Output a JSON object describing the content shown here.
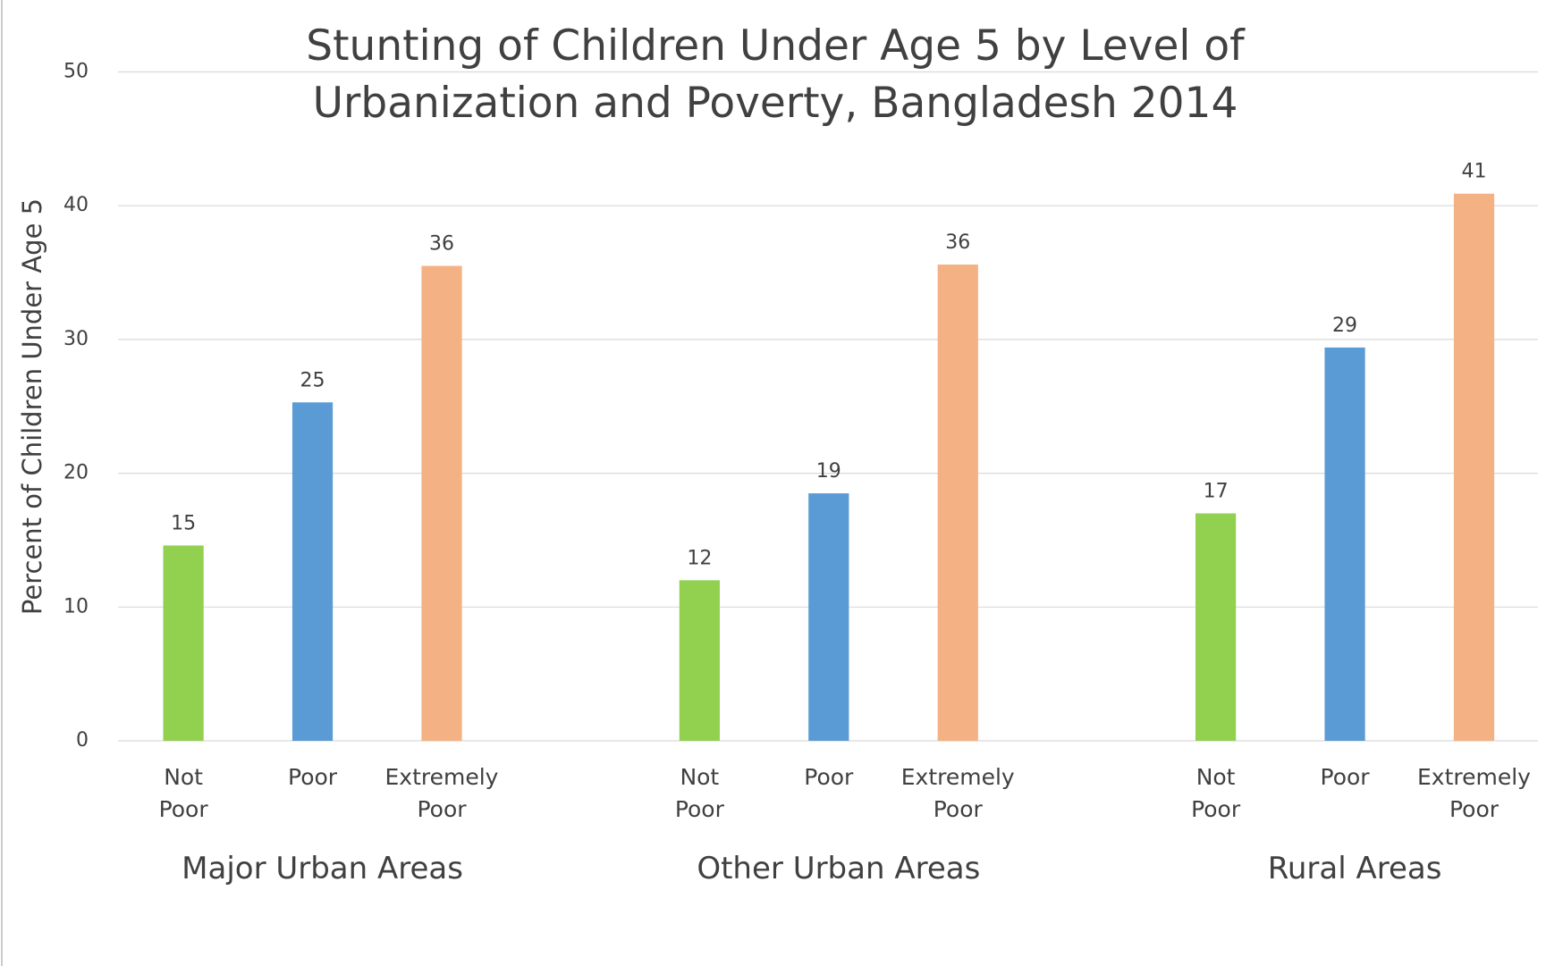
{
  "chart_data": {
    "type": "grouped_bar",
    "title": "Stunting of Children Under Age 5 by Level of Urbanization and Poverty, Bangladesh 2014",
    "y_label": "Percent of Children Under Age 5",
    "groups": [
      "Major Urban Areas",
      "Other Urban Areas",
      "Rural Areas"
    ],
    "series": [
      {
        "name": "Not Poor",
        "color": "#92d050",
        "values": [
          14.6,
          12.0,
          17.0
        ],
        "value_labels": [
          "15",
          "12",
          "17"
        ]
      },
      {
        "name": "Poor",
        "color": "#5b9bd5",
        "values": [
          25.3,
          18.5,
          29.4
        ],
        "value_labels": [
          "25",
          "19",
          "29"
        ]
      },
      {
        "name": "Extremely Poor",
        "color": "#f4b183",
        "values": [
          35.5,
          35.6,
          40.9
        ],
        "value_labels": [
          "36",
          "36",
          "41"
        ]
      }
    ],
    "ylim": [
      0,
      50
    ],
    "yticks": [
      0,
      10,
      20,
      30,
      40,
      50
    ],
    "grid": true
  }
}
